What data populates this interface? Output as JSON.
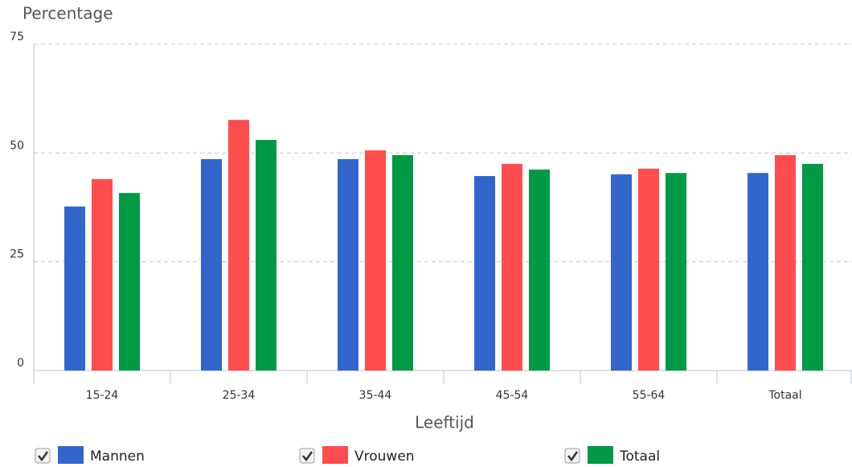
{
  "chart_data": {
    "type": "bar",
    "y_axis_title": "Percentage",
    "x_axis_title": "Leeftijd",
    "categories": [
      "15-24",
      "25-34",
      "35-44",
      "45-54",
      "55-64",
      "Totaal"
    ],
    "series": [
      {
        "name": "Mannen",
        "color": "#3366cc",
        "values": [
          37.7,
          48.6,
          48.6,
          44.7,
          45.1,
          45.4
        ]
      },
      {
        "name": "Vrouwen",
        "color": "#ff4d4d",
        "values": [
          44.0,
          57.6,
          50.6,
          47.5,
          46.4,
          49.5
        ]
      },
      {
        "name": "Totaal",
        "color": "#009944",
        "values": [
          40.8,
          53.0,
          49.5,
          46.2,
          45.4,
          47.5
        ]
      }
    ],
    "ylim": [
      0,
      75
    ],
    "yticks": [
      0,
      25,
      50,
      75
    ],
    "grid": true
  }
}
